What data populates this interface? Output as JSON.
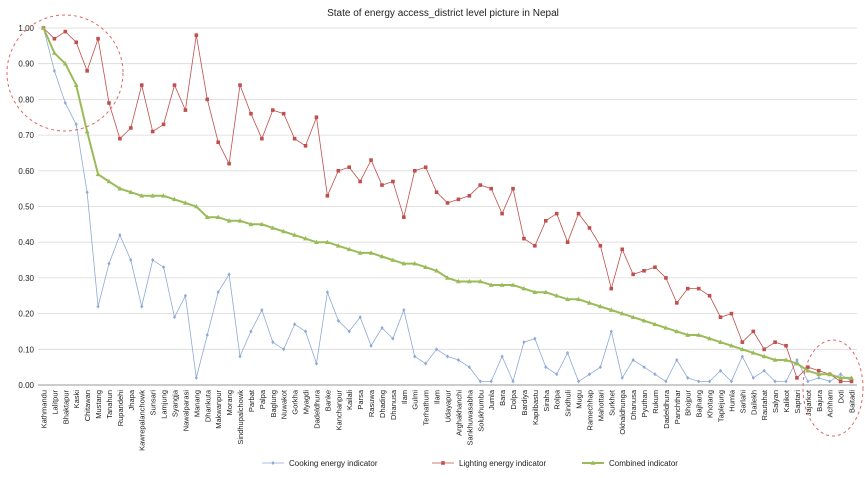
{
  "chart_data": {
    "type": "line",
    "title": "State of energy access_district level picture in Nepal",
    "xlabel": "",
    "ylabel": "",
    "ylim": [
      0,
      1
    ],
    "yticks": [
      "0.00",
      "0.10",
      "0.20",
      "0.30",
      "0.40",
      "0.50",
      "0.60",
      "0.70",
      "0.80",
      "0.90",
      "1.00"
    ],
    "grid": true,
    "legend_position": "bottom",
    "categories": [
      "Kathmandu",
      "Lalitpur",
      "Bhaktapur",
      "Kaski",
      "Chitawan",
      "Mustang",
      "Tanahun",
      "Rupandehi",
      "Jhapa",
      "Kawrepalanchowk",
      "Sunsari",
      "Lamjung",
      "Syangja",
      "Nawalparasi",
      "Manang",
      "Dhankuta",
      "Makwanpur",
      "Morang",
      "Sindhupalchowk",
      "Parbat",
      "Palpa",
      "Baglung",
      "Nuwakot",
      "Gorkha",
      "Myagdi",
      "Dadeldhura",
      "Banke",
      "Kanchanpur",
      "Kailali",
      "Parsa",
      "Rasuwa",
      "Dhading",
      "Dhanusa",
      "Ilam",
      "Gulmi",
      "Terhathum",
      "Ramechhap",
      "Udayapur",
      "Arghakhanchi",
      "Sankhuwasabha",
      "Solukhumbu",
      "Jumla",
      "Bara",
      "Dolpa",
      "Bardiya",
      "Kapilbastu",
      "Siraha",
      "Rolpa",
      "Sindhuli",
      "Mugu",
      "Mahottari",
      "Surkhet",
      "Okhaldhunga",
      "Dhankuta",
      "Pyuthan",
      "Rukum",
      "Doti",
      "Dadeldhura",
      "Panchthar",
      "Bhojpur",
      "Bajhang",
      "Khotang",
      "Taplejung",
      "Humla",
      "Salyan",
      "Dailekh",
      "Baitadi",
      "Sarlahi",
      "Kalikot",
      "Saptari",
      "Jajarkot",
      "Bajura",
      "Achham",
      "Darchula",
      "Baitadi"
    ],
    "tick_labels": [
      "Kathmandu",
      "Lalitpur",
      "Bhaktapur",
      "Kaski",
      "Chitawan",
      "Mustang",
      "Tanahun",
      "Rupandehi",
      "Jhapa",
      "Kawrepalanchowk",
      "Sunsari",
      "Lamjung",
      "Syangja",
      "Nawalparasi",
      "Manang",
      "Dhankuta",
      "Makwanpur",
      "Morang",
      "Sindhupalchowk",
      "Parbat",
      "Palpa",
      "Baglung",
      "Nuwakot",
      "Gorkha",
      "Myagdi",
      "Dadeldhura",
      "Banke",
      "Kanchanpur",
      "Kailali",
      "Parsa",
      "Rasuwa",
      "Dhading",
      "Dhanusa",
      "Ilam",
      "Gulmi",
      "Terhathum",
      "Ilam",
      "Udayapur",
      "Arghakhanchi",
      "Sankhuwasabha",
      "Solukhumbu",
      "Jumla",
      "Bara",
      "Dolpa",
      "Bardiya",
      "Kapilbastu",
      "Siraha",
      "Rolpa",
      "Sindhuli",
      "Mugu",
      "Ramechhap",
      "Mahottari",
      "Surkhet",
      "Okhaldhunga",
      "Dhanusa",
      "Pyuthan",
      "Rukum",
      "Dadeldhura",
      "Panchthar",
      "Bhojpur",
      "Bajhang",
      "Khotang",
      "Taplejung",
      "Humla",
      "Sarlahi",
      "Dailekh",
      "Rautahat",
      "Salyan",
      "Kalikot",
      "Saptari",
      "Jajarkot",
      "Bajura",
      "Achham",
      "Doti",
      "Baitadi"
    ],
    "series": [
      {
        "name": "Cooking energy indicator",
        "color": "#8fa9d6",
        "marker": "diamond",
        "values": [
          1.0,
          0.88,
          0.79,
          0.73,
          0.54,
          0.22,
          0.34,
          0.42,
          0.35,
          0.22,
          0.35,
          0.33,
          0.19,
          0.25,
          0.02,
          0.14,
          0.26,
          0.31,
          0.08,
          0.15,
          0.21,
          0.12,
          0.1,
          0.17,
          0.15,
          0.06,
          0.26,
          0.18,
          0.15,
          0.19,
          0.11,
          0.16,
          0.13,
          0.21,
          0.08,
          0.06,
          0.1,
          0.08,
          0.07,
          0.05,
          0.01,
          0.01,
          0.08,
          0.01,
          0.12,
          0.13,
          0.05,
          0.03,
          0.09,
          0.01,
          0.03,
          0.05,
          0.15,
          0.02,
          0.07,
          0.05,
          0.03,
          0.01,
          0.07,
          0.02,
          0.01,
          0.01,
          0.04,
          0.01,
          0.08,
          0.02,
          0.04,
          0.01,
          0.01,
          0.07,
          0.01,
          0.02,
          0.01,
          0.03,
          0.01
        ]
      },
      {
        "name": "Lighting energy indicator",
        "color": "#c0504d",
        "marker": "square",
        "values": [
          1.0,
          0.97,
          0.99,
          0.96,
          0.88,
          0.97,
          0.79,
          0.69,
          0.72,
          0.84,
          0.71,
          0.73,
          0.84,
          0.77,
          0.98,
          0.8,
          0.68,
          0.62,
          0.84,
          0.76,
          0.69,
          0.77,
          0.76,
          0.69,
          0.67,
          0.75,
          0.53,
          0.6,
          0.61,
          0.57,
          0.63,
          0.56,
          0.57,
          0.47,
          0.6,
          0.61,
          0.54,
          0.51,
          0.52,
          0.53,
          0.56,
          0.55,
          0.48,
          0.55,
          0.41,
          0.39,
          0.46,
          0.48,
          0.4,
          0.48,
          0.44,
          0.39,
          0.27,
          0.38,
          0.31,
          0.32,
          0.33,
          0.3,
          0.23,
          0.27,
          0.27,
          0.25,
          0.19,
          0.2,
          0.12,
          0.15,
          0.1,
          0.12,
          0.11,
          0.02,
          0.05,
          0.04,
          0.03,
          0.01,
          0.01
        ]
      },
      {
        "name": "Combined indicator",
        "color": "#9bbb59",
        "marker": "triangle",
        "values": [
          1.0,
          0.93,
          0.9,
          0.84,
          0.71,
          0.59,
          0.57,
          0.55,
          0.54,
          0.53,
          0.53,
          0.53,
          0.52,
          0.51,
          0.5,
          0.47,
          0.47,
          0.46,
          0.46,
          0.45,
          0.45,
          0.44,
          0.43,
          0.42,
          0.41,
          0.4,
          0.4,
          0.39,
          0.38,
          0.37,
          0.37,
          0.36,
          0.35,
          0.34,
          0.34,
          0.33,
          0.32,
          0.3,
          0.29,
          0.29,
          0.29,
          0.28,
          0.28,
          0.28,
          0.27,
          0.26,
          0.26,
          0.25,
          0.24,
          0.24,
          0.23,
          0.22,
          0.21,
          0.2,
          0.19,
          0.18,
          0.17,
          0.16,
          0.15,
          0.14,
          0.14,
          0.13,
          0.12,
          0.11,
          0.1,
          0.09,
          0.08,
          0.07,
          0.07,
          0.06,
          0.04,
          0.03,
          0.03,
          0.02,
          0.02
        ]
      }
    ]
  }
}
